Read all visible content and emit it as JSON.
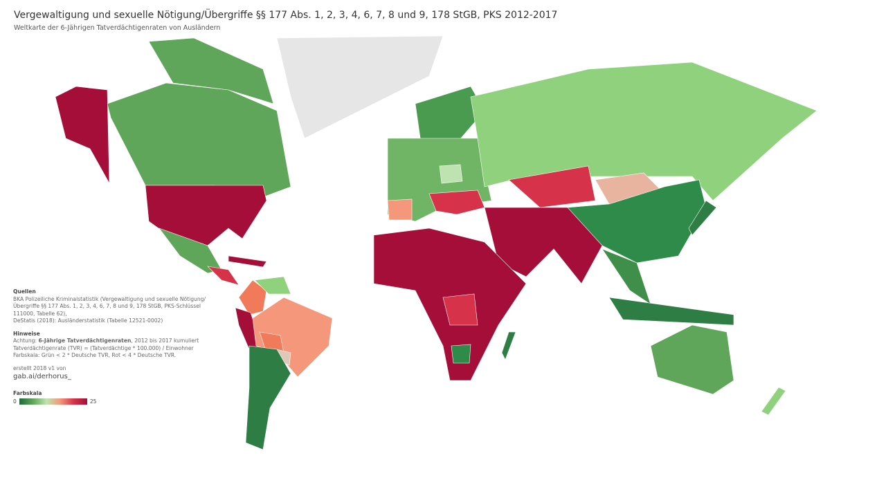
{
  "header": {
    "title": "Vergewaltigung und sexuelle Nötigung/Übergriffe §§ 177 Abs. 1, 2, 3, 4, 6, 7, 8 und 9, 178 StGB, PKS 2012-2017",
    "subtitle": "Weltkarte der 6-Jährigen Tatverdächtigenraten von Ausländern"
  },
  "notes": {
    "sources_heading": "Quellen",
    "sources": [
      "BKA Polizeiliche Kriminalstatistik (Vergewaltigung und sexuelle Nötigung/Übergriffe §§ 177 Abs. 1, 2, 3, 4, 6, 7, 8 und 9, 178 StGB, PKS-Schlüssel 111000, Tabelle 62),",
      "DeStatis (2018): Ausländerstatistik (Tabelle 12521-0002)"
    ],
    "hints_heading": "Hinweise",
    "hint_prefix": "Achtung: ",
    "hint_bold": "6-Jährige Tatverdächtigenraten",
    "hint_suffix": ", 2012 bis 2017 kumuliert",
    "hints": [
      "Tatverdächtigenrate (TVR) = (Tatverdächtige * 100.000) / Einwohner",
      "Farbskala: Grün < 2 * Deutsche TVR, Rot < 4 * Deutsche TVR."
    ],
    "created": "erstellt 2018 v1 von",
    "author": "gab.ai/derhorus_"
  },
  "legend": {
    "title": "Farbskala",
    "min": 0,
    "max": 25
  }
}
